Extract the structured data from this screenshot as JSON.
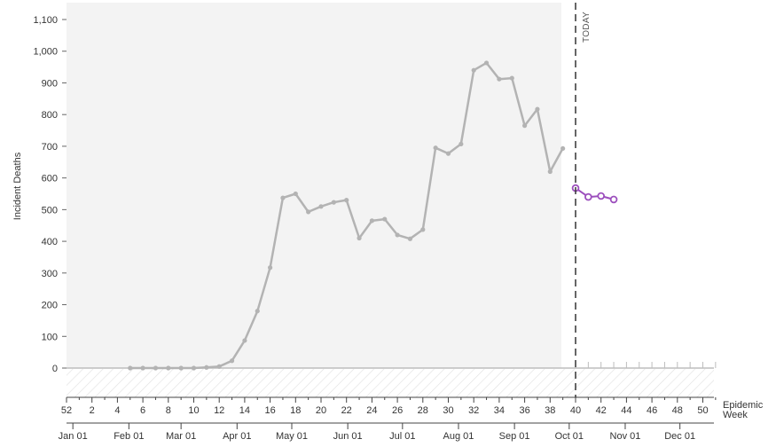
{
  "chart_data": {
    "type": "line",
    "ylabel": "Incident Deaths",
    "xlabel_lines": [
      "Epidemic",
      "Week"
    ],
    "today_label": "TODAY",
    "today_week": 40,
    "ylim": [
      0,
      1100
    ],
    "yticks": [
      0,
      100,
      200,
      300,
      400,
      500,
      600,
      700,
      800,
      900,
      1000,
      1100
    ],
    "ytick_labels": [
      "0",
      "100",
      "200",
      "300",
      "400",
      "500",
      "600",
      "700",
      "800",
      "900",
      "1,000",
      "1,100"
    ],
    "week_ticks": [
      {
        "week": 0,
        "label": "52"
      },
      {
        "week": 2,
        "label": "2"
      },
      {
        "week": 4,
        "label": "4"
      },
      {
        "week": 6,
        "label": "6"
      },
      {
        "week": 8,
        "label": "8"
      },
      {
        "week": 10,
        "label": "10"
      },
      {
        "week": 12,
        "label": "12"
      },
      {
        "week": 14,
        "label": "14"
      },
      {
        "week": 16,
        "label": "16"
      },
      {
        "week": 18,
        "label": "18"
      },
      {
        "week": 20,
        "label": "20"
      },
      {
        "week": 22,
        "label": "22"
      },
      {
        "week": 24,
        "label": "24"
      },
      {
        "week": 26,
        "label": "26"
      },
      {
        "week": 28,
        "label": "28"
      },
      {
        "week": 30,
        "label": "30"
      },
      {
        "week": 32,
        "label": "32"
      },
      {
        "week": 34,
        "label": "34"
      },
      {
        "week": 36,
        "label": "36"
      },
      {
        "week": 38,
        "label": "38"
      },
      {
        "week": 40,
        "label": "40"
      },
      {
        "week": 42,
        "label": "42"
      },
      {
        "week": 44,
        "label": "44"
      },
      {
        "week": 46,
        "label": "46"
      },
      {
        "week": 48,
        "label": "48"
      },
      {
        "week": 50,
        "label": "50"
      }
    ],
    "month_ticks": [
      {
        "week": 0.5,
        "label": "Jan 01"
      },
      {
        "week": 4.9,
        "label": "Feb 01"
      },
      {
        "week": 9.0,
        "label": "Mar 01"
      },
      {
        "week": 13.4,
        "label": "Apr 01"
      },
      {
        "week": 17.7,
        "label": "May 01"
      },
      {
        "week": 22.1,
        "label": "Jun 01"
      },
      {
        "week": 26.4,
        "label": "Jul 01"
      },
      {
        "week": 30.8,
        "label": "Aug 01"
      },
      {
        "week": 35.2,
        "label": "Sep 01"
      },
      {
        "week": 39.5,
        "label": "Oct 01"
      },
      {
        "week": 43.9,
        "label": "Nov 01"
      },
      {
        "week": 48.2,
        "label": "Dec 01"
      }
    ],
    "series": [
      {
        "color": "#b3b3b3",
        "points": [
          [
            5,
            0
          ],
          [
            6,
            0
          ],
          [
            7,
            0
          ],
          [
            8,
            0
          ],
          [
            9,
            0
          ],
          [
            10,
            0
          ],
          [
            11,
            2
          ],
          [
            12,
            5
          ],
          [
            13,
            23
          ],
          [
            14,
            87
          ],
          [
            15,
            180
          ],
          [
            16,
            317
          ],
          [
            17,
            537
          ],
          [
            18,
            550
          ],
          [
            19,
            493
          ],
          [
            20,
            510
          ],
          [
            21,
            523
          ],
          [
            22,
            530
          ],
          [
            23,
            410
          ],
          [
            24,
            465
          ],
          [
            25,
            470
          ],
          [
            26,
            420
          ],
          [
            27,
            408
          ],
          [
            28,
            437
          ],
          [
            29,
            695
          ],
          [
            30,
            677
          ],
          [
            31,
            707
          ],
          [
            32,
            940
          ],
          [
            33,
            963
          ],
          [
            34,
            912
          ],
          [
            35,
            915
          ],
          [
            36,
            765
          ],
          [
            37,
            817
          ],
          [
            38,
            620
          ],
          [
            39,
            693
          ]
        ]
      },
      {
        "color": "#9c4fbd",
        "points": [
          [
            40,
            568
          ],
          [
            41,
            540
          ],
          [
            42,
            543
          ],
          [
            43,
            532
          ]
        ]
      }
    ]
  }
}
